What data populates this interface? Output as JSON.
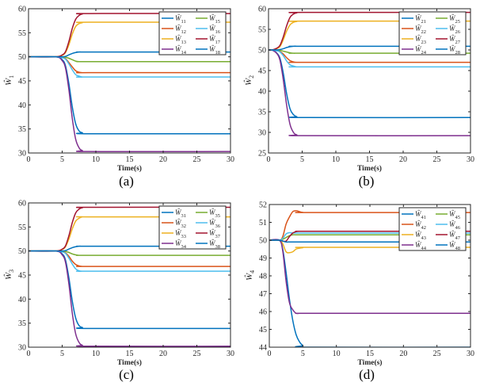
{
  "chart_data": [
    {
      "type": "line",
      "caption": "(a)",
      "xlabel": "Time(s)",
      "ylabel": "Ŵ1",
      "xlim": [
        0,
        30
      ],
      "ylim": [
        30,
        60
      ],
      "xticks": [
        0,
        5,
        10,
        15,
        20,
        25,
        30
      ],
      "yticks": [
        30,
        35,
        40,
        45,
        50,
        55,
        60
      ],
      "legend": "top-right",
      "x": [
        0,
        4,
        5,
        5.5,
        6,
        6.5,
        7,
        7.5,
        8,
        9,
        30
      ],
      "series": [
        {
          "name": "Ŵ11",
          "color": "#0072BD",
          "values": [
            50,
            50,
            49.4,
            48.1,
            44.4,
            39.6,
            36.1,
            34.6,
            34.2,
            34,
            34
          ]
        },
        {
          "name": "Ŵ12",
          "color": "#D95319",
          "values": [
            50,
            50,
            49.9,
            49.6,
            48.8,
            47.9,
            47.1,
            46.8,
            46.7,
            46.7,
            46.7
          ]
        },
        {
          "name": "Ŵ13",
          "color": "#EDB120",
          "values": [
            50,
            50,
            50.3,
            50.9,
            52.5,
            54.7,
            56.3,
            56.9,
            57.1,
            57.2,
            57.2
          ]
        },
        {
          "name": "Ŵ14",
          "color": "#7E2F8E",
          "values": [
            50,
            50,
            49.2,
            47.6,
            43.1,
            37.2,
            32.9,
            31.1,
            30.5,
            30.3,
            30.3
          ]
        },
        {
          "name": "Ŵ15",
          "color": "#77AC30",
          "values": [
            50,
            50,
            50,
            49.9,
            49.7,
            49.4,
            49.1,
            49,
            49,
            49,
            49
          ]
        },
        {
          "name": "Ŵ16",
          "color": "#4DBEEE",
          "values": [
            50,
            50,
            49.8,
            49.5,
            48.5,
            47.3,
            46.3,
            46,
            45.8,
            45.8,
            45.8
          ]
        },
        {
          "name": "Ŵ17",
          "color": "#A2142F",
          "values": [
            50,
            50,
            50.4,
            51.1,
            53.2,
            55.9,
            57.8,
            58.6,
            58.9,
            59,
            59
          ]
        },
        {
          "name": "Ŵ18",
          "color": "#0072BD",
          "values": [
            50,
            50,
            50,
            50.1,
            50.4,
            50.7,
            50.9,
            51,
            51,
            51,
            51
          ]
        }
      ]
    },
    {
      "type": "line",
      "caption": "(b)",
      "xlabel": "Time(s)",
      "ylabel": "Ŵ2",
      "xlim": [
        0,
        30
      ],
      "ylim": [
        25,
        60
      ],
      "xticks": [
        0,
        5,
        10,
        15,
        20,
        25,
        30
      ],
      "yticks": [
        25,
        30,
        35,
        40,
        45,
        50,
        55,
        60
      ],
      "legend": "top-right",
      "x": [
        0,
        0.5,
        1.2,
        1.7,
        2.2,
        2.7,
        3.2,
        3.7,
        4.2,
        5.2,
        30
      ],
      "series": [
        {
          "name": "Ŵ21",
          "color": "#0072BD",
          "values": [
            50,
            50,
            49.3,
            48,
            44.3,
            39.3,
            35.7,
            34.3,
            33.8,
            33.6,
            33.6
          ]
        },
        {
          "name": "Ŵ22",
          "color": "#D95319",
          "values": [
            50,
            50,
            49.9,
            49.6,
            49,
            48.1,
            47.4,
            47.1,
            47,
            47,
            47
          ]
        },
        {
          "name": "Ŵ23",
          "color": "#EDB120",
          "values": [
            50,
            50,
            50.3,
            50.8,
            52.5,
            54.6,
            56.1,
            56.7,
            56.9,
            57,
            57
          ]
        },
        {
          "name": "Ŵ24",
          "color": "#7E2F8E",
          "values": [
            50,
            50,
            49.2,
            47.5,
            42.7,
            36.5,
            31.9,
            30,
            29.4,
            29.2,
            29.2
          ]
        },
        {
          "name": "Ŵ25",
          "color": "#77AC30",
          "values": [
            50,
            50,
            50,
            49.9,
            49.7,
            49.5,
            49.3,
            49.2,
            49.2,
            49.2,
            49.2
          ]
        },
        {
          "name": "Ŵ26",
          "color": "#4DBEEE",
          "values": [
            50,
            50,
            49.8,
            49.5,
            48.6,
            47.3,
            46.4,
            46.1,
            45.9,
            45.9,
            45.9
          ]
        },
        {
          "name": "Ŵ27",
          "color": "#A2142F",
          "values": [
            50,
            50,
            50.4,
            51.1,
            53.2,
            55.9,
            57.9,
            58.7,
            59,
            59.1,
            59.1
          ]
        },
        {
          "name": "Ŵ28",
          "color": "#0072BD",
          "values": [
            50,
            50,
            50,
            50.1,
            50.3,
            50.6,
            50.8,
            50.9,
            50.9,
            50.9,
            50.9
          ]
        }
      ]
    },
    {
      "type": "line",
      "caption": "(c)",
      "xlabel": "Time(s)",
      "ylabel": "Ŵ3",
      "xlim": [
        0,
        30
      ],
      "ylim": [
        30,
        60
      ],
      "xticks": [
        0,
        5,
        10,
        15,
        20,
        25,
        30
      ],
      "yticks": [
        30,
        35,
        40,
        45,
        50,
        55,
        60
      ],
      "legend": "top-right",
      "x": [
        0,
        4,
        5,
        5.5,
        6,
        6.5,
        7,
        7.5,
        8,
        9,
        30
      ],
      "series": [
        {
          "name": "Ŵ31",
          "color": "#0072BD",
          "values": [
            50,
            50,
            49.4,
            48.1,
            44.4,
            39.6,
            36.1,
            34.5,
            34.1,
            33.9,
            33.9
          ]
        },
        {
          "name": "Ŵ32",
          "color": "#D95319",
          "values": [
            50,
            50,
            49.9,
            49.6,
            48.9,
            47.9,
            47.2,
            46.9,
            46.8,
            46.8,
            46.8
          ]
        },
        {
          "name": "Ŵ33",
          "color": "#EDB120",
          "values": [
            50,
            50,
            50.3,
            50.9,
            52.5,
            54.6,
            56.2,
            56.8,
            57.1,
            57.1,
            57.1
          ]
        },
        {
          "name": "Ŵ34",
          "color": "#7E2F8E",
          "values": [
            50,
            50,
            49.2,
            47.6,
            43.1,
            37.1,
            32.8,
            31,
            30.4,
            30.2,
            30.2
          ]
        },
        {
          "name": "Ŵ35",
          "color": "#77AC30",
          "values": [
            50,
            50,
            50,
            49.9,
            49.7,
            49.4,
            49.2,
            49.1,
            49.1,
            49.1,
            49.1
          ]
        },
        {
          "name": "Ŵ36",
          "color": "#4DBEEE",
          "values": [
            50,
            50,
            49.8,
            49.5,
            48.5,
            47.3,
            46.3,
            45.9,
            45.8,
            45.8,
            45.8
          ]
        },
        {
          "name": "Ŵ37",
          "color": "#A2142F",
          "values": [
            50,
            50,
            50.4,
            51.1,
            53.2,
            55.9,
            57.9,
            58.7,
            59,
            59.1,
            59.1
          ]
        },
        {
          "name": "Ŵ38",
          "color": "#0072BD",
          "values": [
            50,
            50,
            50,
            50.1,
            50.4,
            50.7,
            50.9,
            51,
            51,
            51,
            51
          ]
        }
      ]
    },
    {
      "type": "line",
      "caption": "(d)",
      "xlabel": "Time(s)",
      "ylabel": "Ŵ4",
      "xlim": [
        0,
        30
      ],
      "ylim": [
        44,
        52
      ],
      "xticks": [
        0,
        5,
        10,
        15,
        20,
        25,
        30
      ],
      "yticks": [
        44,
        45,
        46,
        47,
        48,
        49,
        50,
        51,
        52
      ],
      "legend": "top-right",
      "x": [
        0,
        1.5,
        2,
        2.5,
        3,
        3.5,
        4,
        4.5,
        5,
        6,
        30
      ],
      "series": [
        {
          "name": "Ŵ41",
          "color": "#0072BD",
          "values": [
            50,
            50,
            49.5,
            48.2,
            46.7,
            45.5,
            44.7,
            44.3,
            44.1,
            44,
            44
          ]
        },
        {
          "name": "Ŵ42",
          "color": "#D95319",
          "values": [
            50,
            50,
            50.2,
            50.9,
            51.3,
            51.6,
            51.65,
            51.6,
            51.56,
            51.55,
            51.55
          ]
        },
        {
          "name": "Ŵ43",
          "color": "#EDB120",
          "values": [
            50,
            50,
            49.8,
            49.35,
            49.3,
            49.35,
            49.5,
            49.55,
            49.58,
            49.6,
            49.6
          ]
        },
        {
          "name": "Ŵ44",
          "color": "#7E2F8E",
          "values": [
            50,
            50,
            49.4,
            47.7,
            46.5,
            46.1,
            45.9,
            45.9,
            45.9,
            45.9,
            45.9
          ]
        },
        {
          "name": "Ŵ45",
          "color": "#77AC30",
          "values": [
            50,
            50,
            50.05,
            50.15,
            50.25,
            50.3,
            50.3,
            50.3,
            50.3,
            50.3,
            50.3
          ]
        },
        {
          "name": "Ŵ46",
          "color": "#4DBEEE",
          "values": [
            50,
            50,
            50.1,
            50.35,
            50.42,
            50.4,
            50.4,
            50.4,
            50.4,
            50.4,
            50.4
          ]
        },
        {
          "name": "Ŵ47",
          "color": "#A2142F",
          "values": [
            50,
            50,
            49.95,
            49.95,
            50.2,
            50.4,
            50.48,
            50.5,
            50.5,
            50.5,
            50.5
          ]
        },
        {
          "name": "Ŵ48",
          "color": "#0072BD",
          "values": [
            50,
            50,
            49.95,
            49.9,
            49.9,
            49.9,
            49.9,
            49.9,
            49.9,
            49.9,
            49.9
          ]
        }
      ]
    }
  ]
}
